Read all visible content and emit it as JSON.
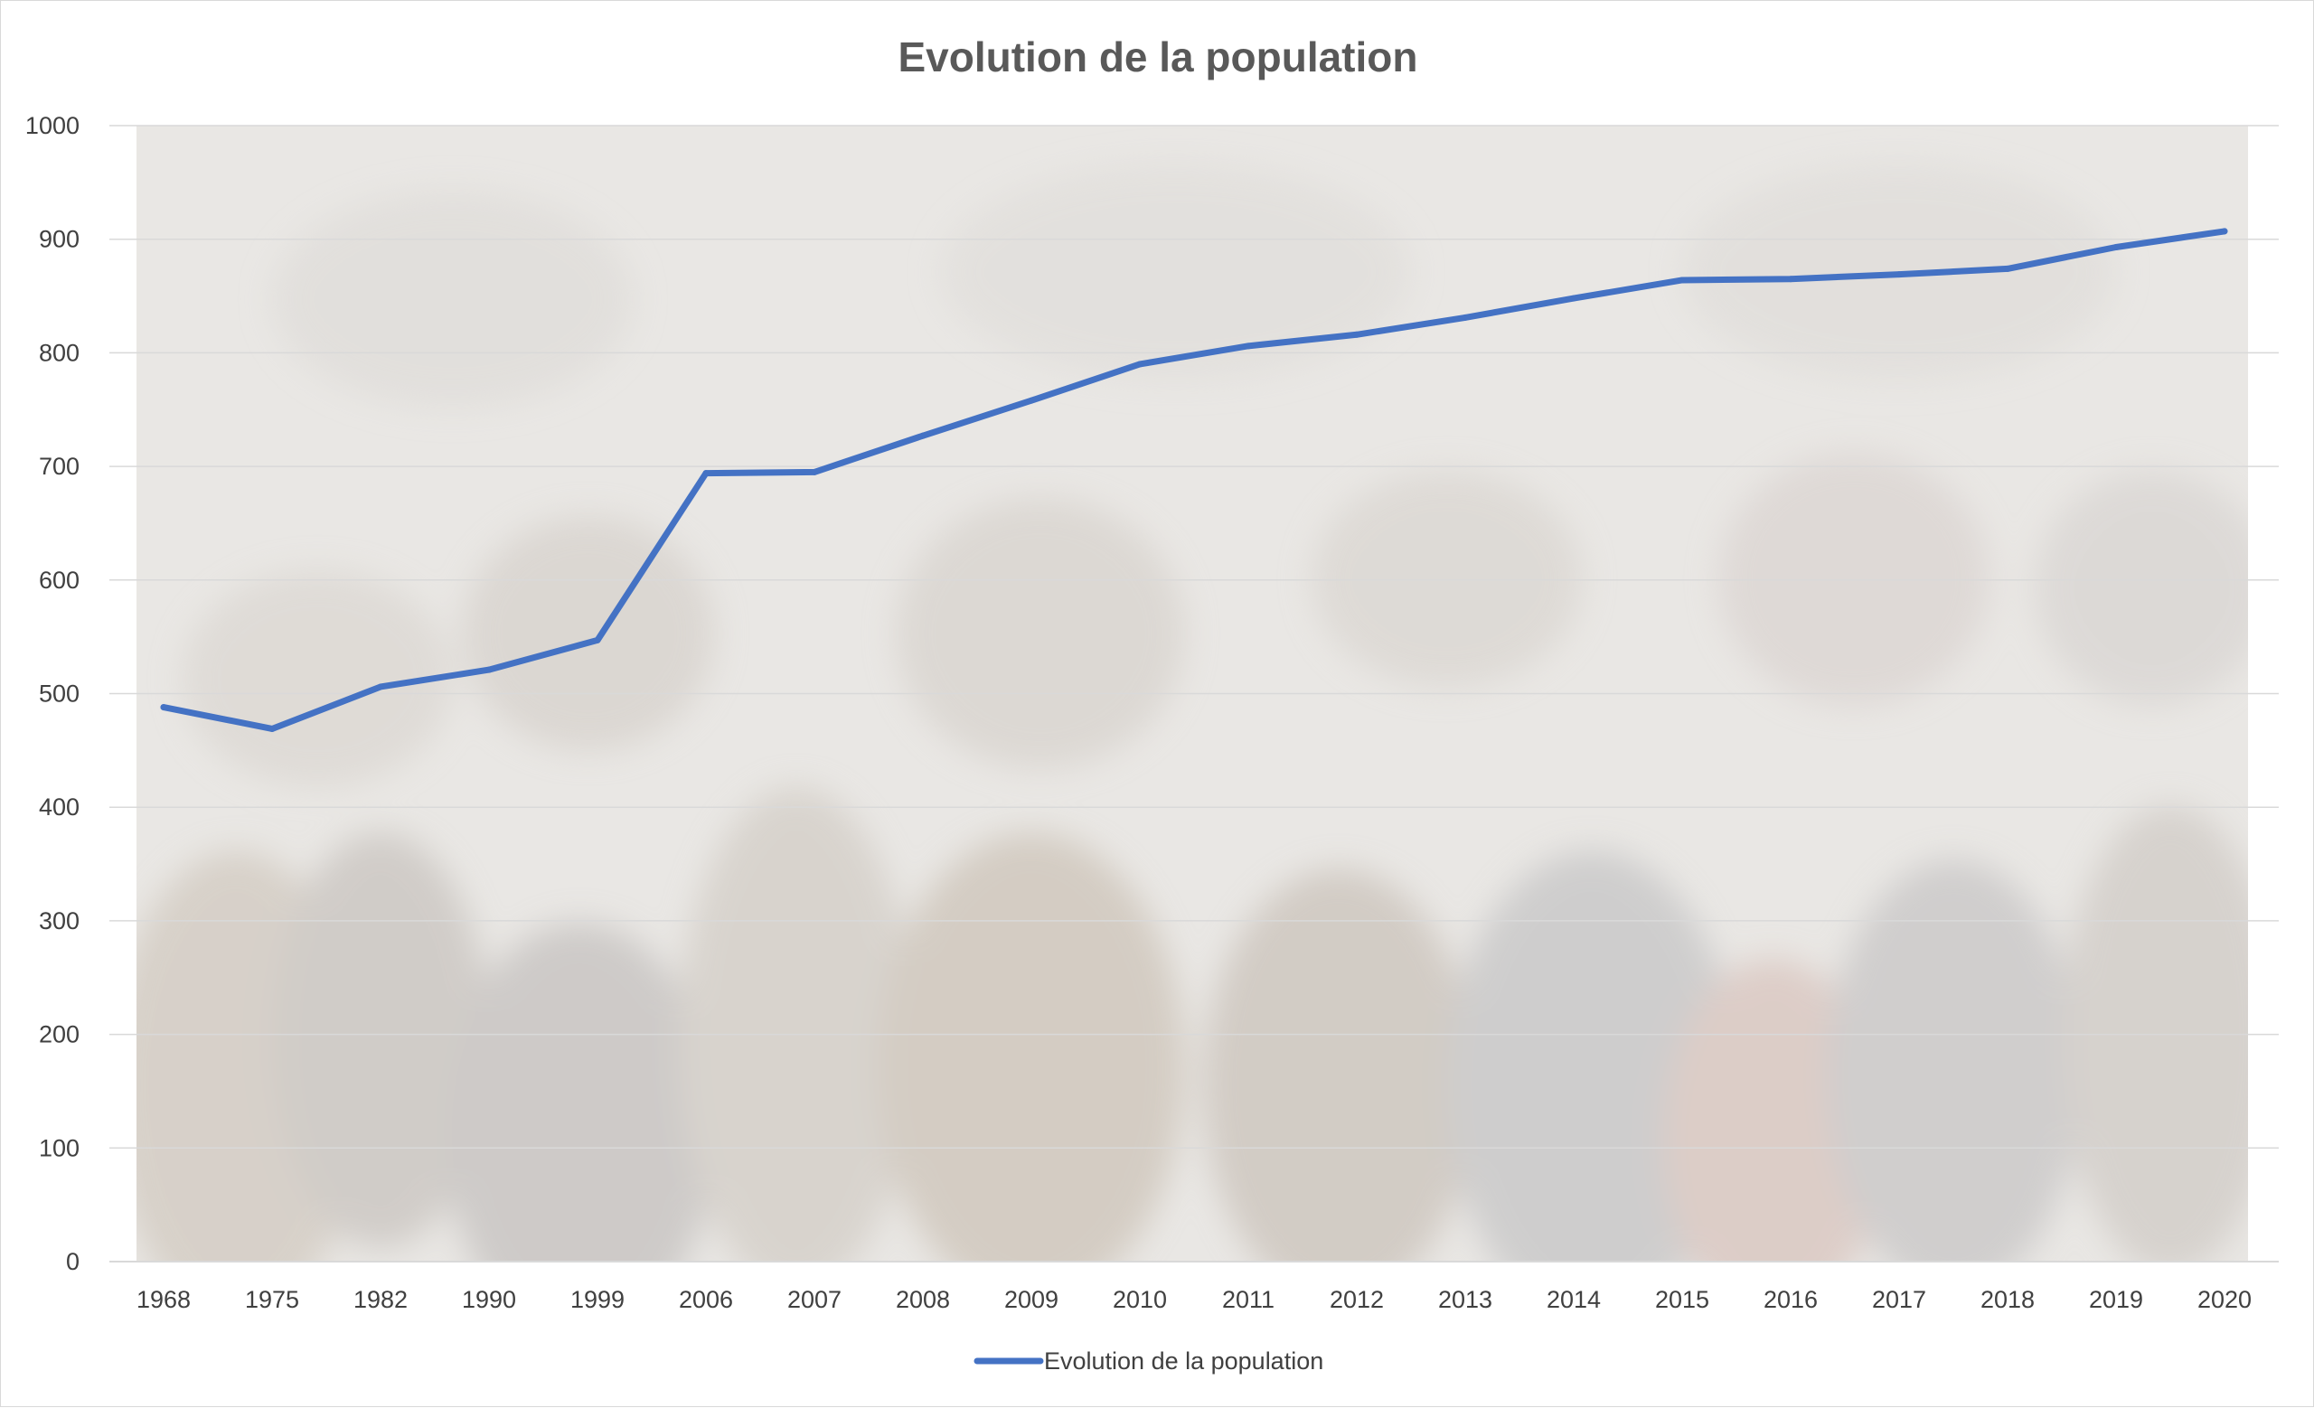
{
  "colors": {
    "series": "#4472C4",
    "gridline": "#d9d9d9",
    "axis_text": "#404040",
    "title": "#595959",
    "plot_background": "#e9e7e4"
  },
  "chart_data": {
    "type": "line",
    "title": "Evolution de la population",
    "xlabel": "",
    "ylabel": "",
    "ylim": [
      0,
      1000
    ],
    "ytick_step": 100,
    "grid": true,
    "legend_position": "bottom",
    "plot_background": "photograph of a crowd of people",
    "categories": [
      "1968",
      "1975",
      "1982",
      "1990",
      "1999",
      "2006",
      "2007",
      "2008",
      "2009",
      "2010",
      "2011",
      "2012",
      "2013",
      "2014",
      "2015",
      "2016",
      "2017",
      "2018",
      "2019",
      "2020"
    ],
    "series": [
      {
        "name": "Evolution de la population",
        "values": [
          488,
          469,
          506,
          521,
          547,
          694,
          695,
          727,
          758,
          790,
          806,
          816,
          831,
          848,
          864,
          865,
          869,
          874,
          893,
          907
        ]
      }
    ]
  }
}
